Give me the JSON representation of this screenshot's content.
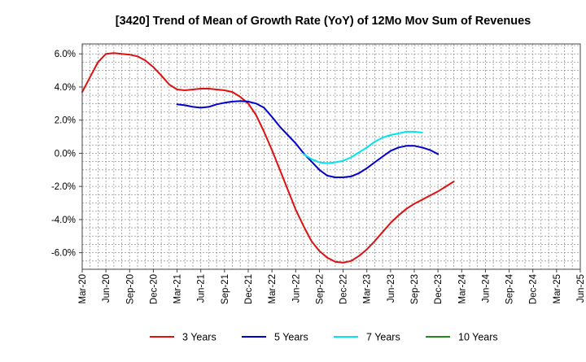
{
  "chart_data": {
    "type": "line",
    "title": "[3420]  Trend of Mean of Growth Rate (YoY) of 12Mo Mov Sum of Revenues",
    "xlabel": "",
    "ylabel": "",
    "ylim": [
      -7.0,
      6.6
    ],
    "y_ticks": [
      6.0,
      4.0,
      2.0,
      0.0,
      -2.0,
      -4.0,
      -6.0
    ],
    "y_tick_labels": [
      "6.0%",
      "4.0%",
      "2.0%",
      "0.0%",
      "-2.0%",
      "-4.0%",
      "-6.0%"
    ],
    "x_tick_labels": [
      "Mar-20",
      "Jun-20",
      "Sep-20",
      "Dec-20",
      "Mar-21",
      "Jun-21",
      "Sep-21",
      "Dec-21",
      "Mar-22",
      "Jun-22",
      "Sep-22",
      "Dec-22",
      "Mar-23",
      "Jun-23",
      "Sep-23",
      "Dec-23",
      "Mar-24",
      "Jun-24",
      "Sep-24",
      "Dec-24",
      "Mar-25",
      "Jun-25"
    ],
    "grid": true,
    "legend_position": "bottom",
    "series": [
      {
        "name": "3 Years",
        "color": "#dd1111",
        "values": [
          3.7,
          4.6,
          5.5,
          6.0,
          6.05,
          6.0,
          5.95,
          5.85,
          5.6,
          5.2,
          4.7,
          4.15,
          3.85,
          3.8,
          3.85,
          3.9,
          3.9,
          3.85,
          3.8,
          3.7,
          3.4,
          3.0,
          2.3,
          1.3,
          0.2,
          -1.0,
          -2.2,
          -3.4,
          -4.4,
          -5.3,
          -5.9,
          -6.3,
          -6.55,
          -6.6,
          -6.5,
          -6.2,
          -5.8,
          -5.3,
          -4.75,
          -4.2,
          -3.75,
          -3.35,
          -3.05,
          -2.8,
          -2.55,
          -2.3,
          -2.0,
          -1.7
        ]
      },
      {
        "name": "5 Years",
        "color": "#0000cc",
        "values": [
          null,
          null,
          null,
          null,
          null,
          null,
          null,
          null,
          null,
          null,
          null,
          null,
          2.95,
          2.9,
          2.8,
          2.75,
          2.8,
          2.95,
          3.05,
          3.12,
          3.15,
          3.12,
          3.0,
          2.75,
          2.2,
          1.6,
          1.1,
          0.6,
          0.0,
          -0.5,
          -1.0,
          -1.35,
          -1.45,
          -1.45,
          -1.4,
          -1.2,
          -0.9,
          -0.55,
          -0.2,
          0.15,
          0.35,
          0.45,
          0.45,
          0.35,
          0.2,
          -0.05
        ]
      },
      {
        "name": "7 Years",
        "color": "#00e5ee",
        "values": [
          null,
          null,
          null,
          null,
          null,
          null,
          null,
          null,
          null,
          null,
          null,
          null,
          null,
          null,
          null,
          null,
          null,
          null,
          null,
          null,
          null,
          null,
          null,
          null,
          null,
          null,
          null,
          null,
          -0.05,
          -0.35,
          -0.55,
          -0.6,
          -0.55,
          -0.45,
          -0.25,
          0.05,
          0.35,
          0.7,
          0.95,
          1.1,
          1.2,
          1.3,
          1.3,
          1.25
        ]
      },
      {
        "name": "10 Years",
        "color": "#228822",
        "values": []
      }
    ]
  }
}
